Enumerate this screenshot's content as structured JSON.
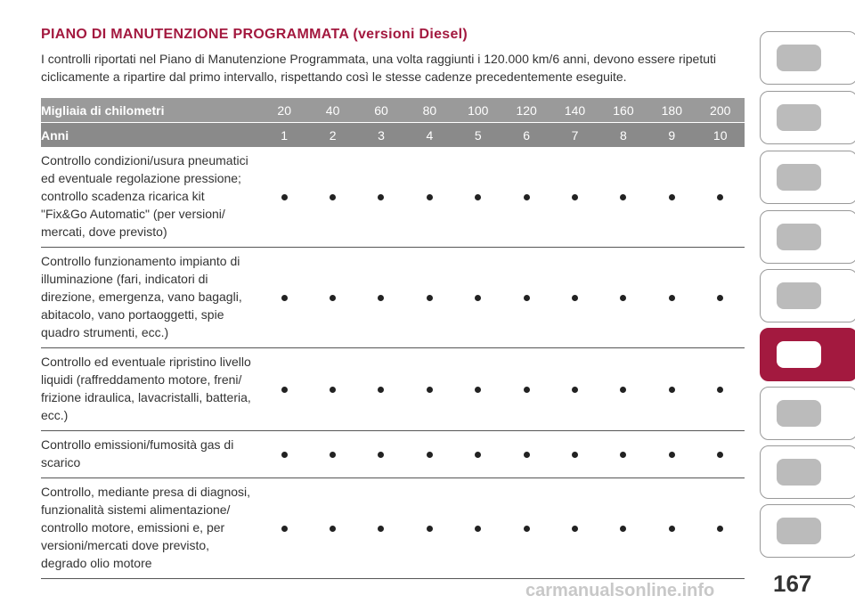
{
  "header": {
    "title": "PIANO DI MANUTENZIONE PROGRAMMATA (versioni Diesel)",
    "intro": [
      "I controlli riportati nel Piano di Manutenzione Programmata, una volta raggiunti i 120.000 km/6 anni, devono essere ripetuti",
      "ciclicamente a ripartire dal primo intervallo, rispettando così le stesse cadenze precedentemente eseguite."
    ]
  },
  "table": {
    "header_rows": [
      {
        "label": "Migliaia di chilometri",
        "values": [
          "20",
          "40",
          "60",
          "80",
          "100",
          "120",
          "140",
          "160",
          "180",
          "200"
        ]
      },
      {
        "label": "Anni",
        "values": [
          "1",
          "2",
          "3",
          "4",
          "5",
          "6",
          "7",
          "8",
          "9",
          "10"
        ]
      }
    ],
    "rows": [
      {
        "label": [
          "Controllo condizioni/usura pneumatici",
          "ed eventuale regolazione pressione;",
          "controllo scadenza ricarica kit",
          "\"Fix&Go Automatic\" (per versioni/",
          "mercati, dove previsto)"
        ]
      },
      {
        "label": [
          "Controllo funzionamento impianto di",
          "illuminazione (fari, indicatori di",
          "direzione, emergenza, vano bagagli,",
          "abitacolo, vano portaoggetti, spie",
          "quadro strumenti, ecc.)"
        ]
      },
      {
        "label": [
          "Controllo ed eventuale ripristino livello",
          "liquidi (raffreddamento motore, freni/",
          "frizione idraulica, lavacristalli, batteria,",
          "ecc.)"
        ]
      },
      {
        "label": [
          "Controllo emissioni/fumosità gas di",
          "scarico"
        ]
      },
      {
        "label": [
          "Controllo, mediante presa di diagnosi,",
          "funzionalità sistemi alimentazione/",
          "controllo motore, emissioni e, per",
          "versioni/mercati dove previsto,",
          "degrado olio motore"
        ]
      }
    ]
  },
  "footer": {
    "page_number": "167",
    "watermark": "carmanualsonline.info"
  }
}
